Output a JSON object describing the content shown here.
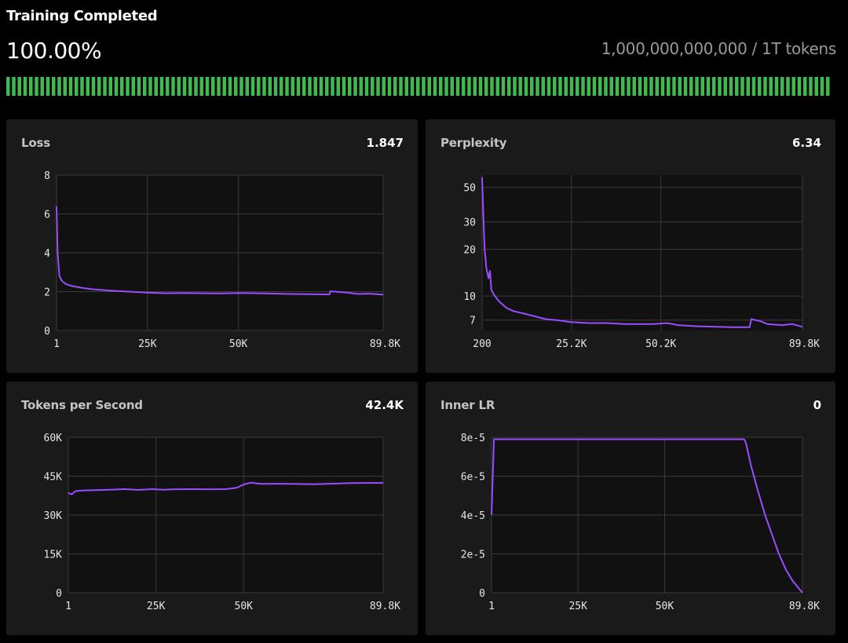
{
  "header": {
    "title": "Training Completed",
    "percent_label": "100.00%",
    "tokens_label": "1,000,000,000,000 / 1T tokens",
    "progress_fraction": 1.0,
    "progress_color": "#3fb950"
  },
  "colors": {
    "line": "#9a4dff",
    "grid": "#3a3a3a",
    "panel": "#1a1a1a"
  },
  "chart_data": [
    {
      "type": "line",
      "title": "Loss",
      "current_value": "1.847",
      "x_ticks": [
        {
          "v": 1,
          "label": "1"
        },
        {
          "v": 25000,
          "label": "25K"
        },
        {
          "v": 50000,
          "label": "50K"
        },
        {
          "v": 89800,
          "label": "89.8K"
        }
      ],
      "y_ticks": [
        {
          "v": 0,
          "label": "0"
        },
        {
          "v": 2,
          "label": "2"
        },
        {
          "v": 4,
          "label": "4"
        },
        {
          "v": 6,
          "label": "6"
        },
        {
          "v": 8,
          "label": "8"
        }
      ],
      "xlim": [
        1,
        89800
      ],
      "ylim": [
        0,
        8
      ],
      "series": [
        {
          "name": "loss",
          "x": [
            1,
            300,
            800,
            1500,
            2500,
            4000,
            7000,
            10000,
            15000,
            20000,
            25000,
            30000,
            35000,
            40000,
            45000,
            50000,
            55000,
            60000,
            65000,
            70000,
            75000,
            75300,
            80000,
            83000,
            86000,
            89800
          ],
          "y": [
            6.4,
            4.0,
            2.8,
            2.55,
            2.4,
            2.3,
            2.2,
            2.12,
            2.05,
            2.0,
            1.95,
            1.92,
            1.93,
            1.92,
            1.91,
            1.93,
            1.92,
            1.9,
            1.88,
            1.87,
            1.86,
            2.02,
            1.95,
            1.88,
            1.9,
            1.847
          ]
        }
      ]
    },
    {
      "type": "line",
      "title": "Perplexity",
      "current_value": "6.34",
      "x_ticks": [
        {
          "v": 200,
          "label": "200"
        },
        {
          "v": 25200,
          "label": "25.2K"
        },
        {
          "v": 50200,
          "label": "50.2K"
        },
        {
          "v": 89800,
          "label": "89.8K"
        }
      ],
      "y_ticks": [
        {
          "v": 7,
          "label": "7"
        },
        {
          "v": 10,
          "label": "10"
        },
        {
          "v": 20,
          "label": "20"
        },
        {
          "v": 30,
          "label": "30"
        },
        {
          "v": 50,
          "label": "50"
        }
      ],
      "xlim": [
        200,
        89800
      ],
      "ylim": [
        6,
        60
      ],
      "yscale": "log",
      "series": [
        {
          "name": "perplexity",
          "x": [
            200,
            500,
            900,
            1400,
            2000,
            2400,
            2800,
            3500,
            5000,
            7000,
            9000,
            12000,
            15000,
            18000,
            21000,
            25000,
            30000,
            35000,
            40000,
            45000,
            48000,
            52000,
            55000,
            60000,
            65000,
            70000,
            75000,
            75500,
            78000,
            80000,
            84000,
            87000,
            89800
          ],
          "y": [
            58,
            35,
            20,
            15,
            13,
            14.5,
            11,
            10.2,
            9.2,
            8.4,
            8.0,
            7.7,
            7.4,
            7.1,
            7.0,
            6.8,
            6.7,
            6.7,
            6.6,
            6.6,
            6.6,
            6.7,
            6.5,
            6.4,
            6.35,
            6.3,
            6.3,
            7.1,
            6.9,
            6.6,
            6.5,
            6.6,
            6.34
          ]
        }
      ]
    },
    {
      "type": "line",
      "title": "Tokens per Second",
      "current_value": "42.4K",
      "x_ticks": [
        {
          "v": 1,
          "label": "1"
        },
        {
          "v": 25000,
          "label": "25K"
        },
        {
          "v": 50000,
          "label": "50K"
        },
        {
          "v": 89800,
          "label": "89.8K"
        }
      ],
      "y_ticks": [
        {
          "v": 0,
          "label": "0"
        },
        {
          "v": 15000,
          "label": "15K"
        },
        {
          "v": 30000,
          "label": "30K"
        },
        {
          "v": 45000,
          "label": "45K"
        },
        {
          "v": 60000,
          "label": "60K"
        }
      ],
      "xlim": [
        1,
        89800
      ],
      "ylim": [
        0,
        60000
      ],
      "series": [
        {
          "name": "tokens_per_second",
          "x": [
            1,
            1000,
            2000,
            4000,
            8000,
            12000,
            16000,
            20000,
            24000,
            27000,
            30000,
            35000,
            40000,
            45000,
            48000,
            50000,
            52000,
            55000,
            60000,
            65000,
            70000,
            75000,
            80000,
            85000,
            89800
          ],
          "y": [
            38500,
            38000,
            39200,
            39500,
            39600,
            39800,
            40000,
            39700,
            40000,
            39800,
            39900,
            40000,
            39900,
            40000,
            40500,
            41800,
            42500,
            42000,
            42100,
            42000,
            41900,
            42100,
            42300,
            42400,
            42400
          ]
        }
      ]
    },
    {
      "type": "line",
      "title": "Inner LR",
      "current_value": "0",
      "x_ticks": [
        {
          "v": 1,
          "label": "1"
        },
        {
          "v": 25000,
          "label": "25K"
        },
        {
          "v": 50000,
          "label": "50K"
        },
        {
          "v": 89800,
          "label": "89.8K"
        }
      ],
      "y_ticks": [
        {
          "v": 0,
          "label": "0"
        },
        {
          "v": 2e-05,
          "label": "2e-5"
        },
        {
          "v": 4e-05,
          "label": "4e-5"
        },
        {
          "v": 6e-05,
          "label": "6e-5"
        },
        {
          "v": 8e-05,
          "label": "8e-5"
        }
      ],
      "xlim": [
        1,
        89800
      ],
      "ylim": [
        0,
        8e-05
      ],
      "series": [
        {
          "name": "inner_lr",
          "x": [
            1,
            700,
            1000,
            20000,
            40000,
            60000,
            73000,
            73500,
            75000,
            77000,
            79000,
            81000,
            83000,
            85000,
            87000,
            89800
          ],
          "y": [
            4e-05,
            7.9e-05,
            7.9e-05,
            7.9e-05,
            7.9e-05,
            7.9e-05,
            7.9e-05,
            7.7e-05,
            6.5e-05,
            5.2e-05,
            4e-05,
            3e-05,
            2e-05,
            1.2e-05,
            6e-06,
            0
          ]
        }
      ]
    }
  ]
}
